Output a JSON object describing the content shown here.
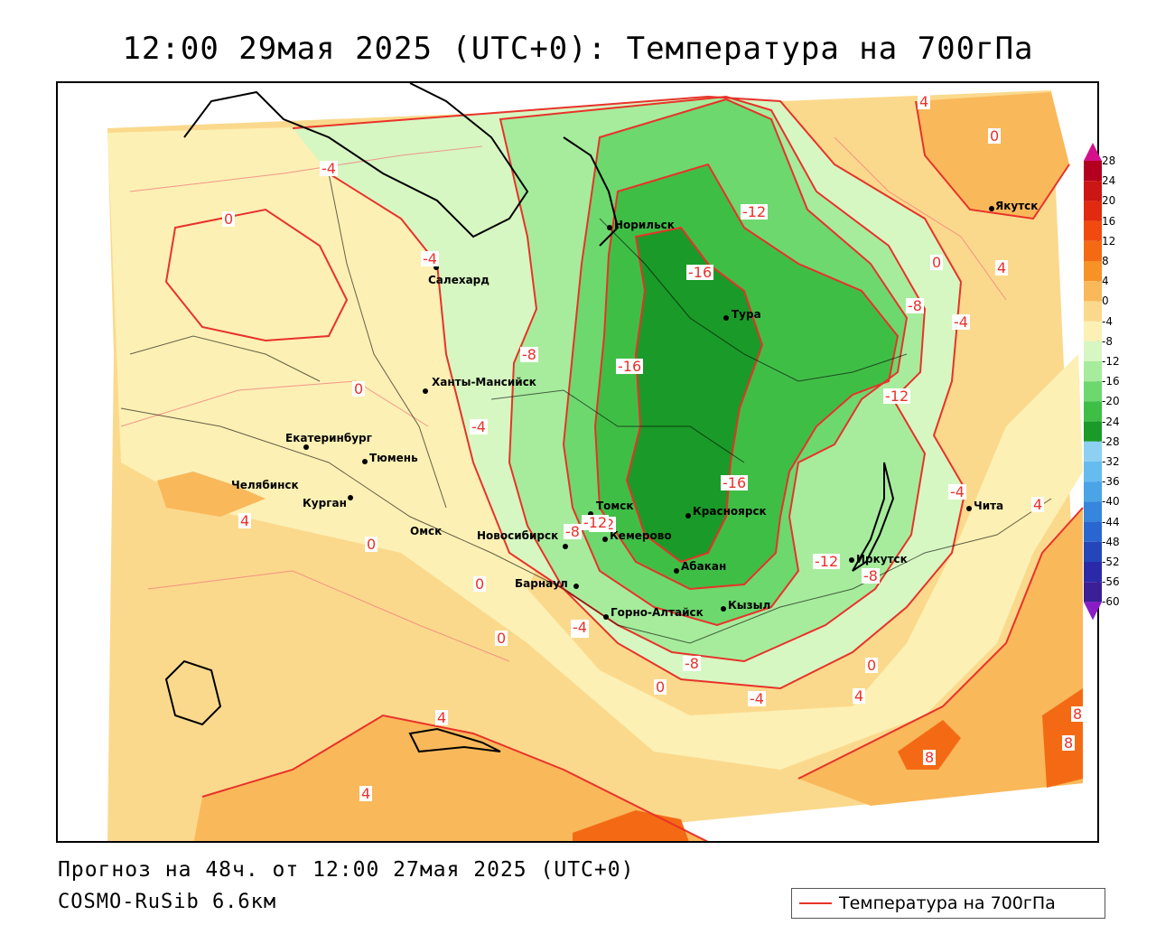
{
  "title": "12:00 29мая 2025 (UTC+0): Температура на 700гПа",
  "footer": {
    "forecast": "Прогноз на 48ч. от 12:00 27мая 2025 (UTC+0)",
    "model": "COSMO-RuSib 6.6км"
  },
  "legend": {
    "label": "Температура на 700гПа",
    "color": "#e8322a"
  },
  "colorbar": {
    "ticks": [
      "28",
      "24",
      "20",
      "16",
      "12",
      "8",
      "4",
      "0",
      "-4",
      "-8",
      "-12",
      "-16",
      "-20",
      "-24",
      "-28",
      "-32",
      "-36",
      "-40",
      "-44",
      "-48",
      "-52",
      "-56",
      "-60"
    ],
    "colors": [
      "#b3001e",
      "#cc1515",
      "#e22a10",
      "#f04a10",
      "#f46a14",
      "#f69226",
      "#f9b85a",
      "#fbd98c",
      "#fdf0b4",
      "#d6f7c2",
      "#a6ec9c",
      "#6cd86e",
      "#3fbe46",
      "#1a9a28",
      "#8ed0f2",
      "#66bcee",
      "#4aa4e6",
      "#3586dc",
      "#2a66d0",
      "#2446b8",
      "#2a2aa8",
      "#3a1f96"
    ]
  },
  "cities": [
    {
      "name": "Якутск"
    },
    {
      "name": "Норильск"
    },
    {
      "name": "Салехард"
    },
    {
      "name": "Тура"
    },
    {
      "name": "Ханты-Мансийск"
    },
    {
      "name": "Екатеринбург"
    },
    {
      "name": "Тюмень"
    },
    {
      "name": "Челябинск"
    },
    {
      "name": "Курган"
    },
    {
      "name": "Омск"
    },
    {
      "name": "Новосибирск"
    },
    {
      "name": "Томск"
    },
    {
      "name": "Кемерово"
    },
    {
      "name": "Красноярск"
    },
    {
      "name": "Барнаул"
    },
    {
      "name": "Абакан"
    },
    {
      "name": "Иркутск"
    },
    {
      "name": "Горно-Алтайск"
    },
    {
      "name": "Кызыл"
    },
    {
      "name": "Чита"
    }
  ],
  "contour_labels": [
    "4",
    "0",
    "-4",
    "0",
    "-4",
    "-12",
    "-16",
    "-16",
    "-8",
    "-12",
    "-4",
    "-8",
    "0",
    "4",
    "-16",
    "-12",
    "-8",
    "-4",
    "0",
    "-4",
    "4",
    "-8",
    "-12",
    "-4",
    "0",
    "4",
    "4",
    "8",
    "8",
    "8",
    "0",
    "0",
    "-4",
    "-8",
    "-12",
    "4",
    "4",
    "-4",
    "0",
    "0"
  ]
}
